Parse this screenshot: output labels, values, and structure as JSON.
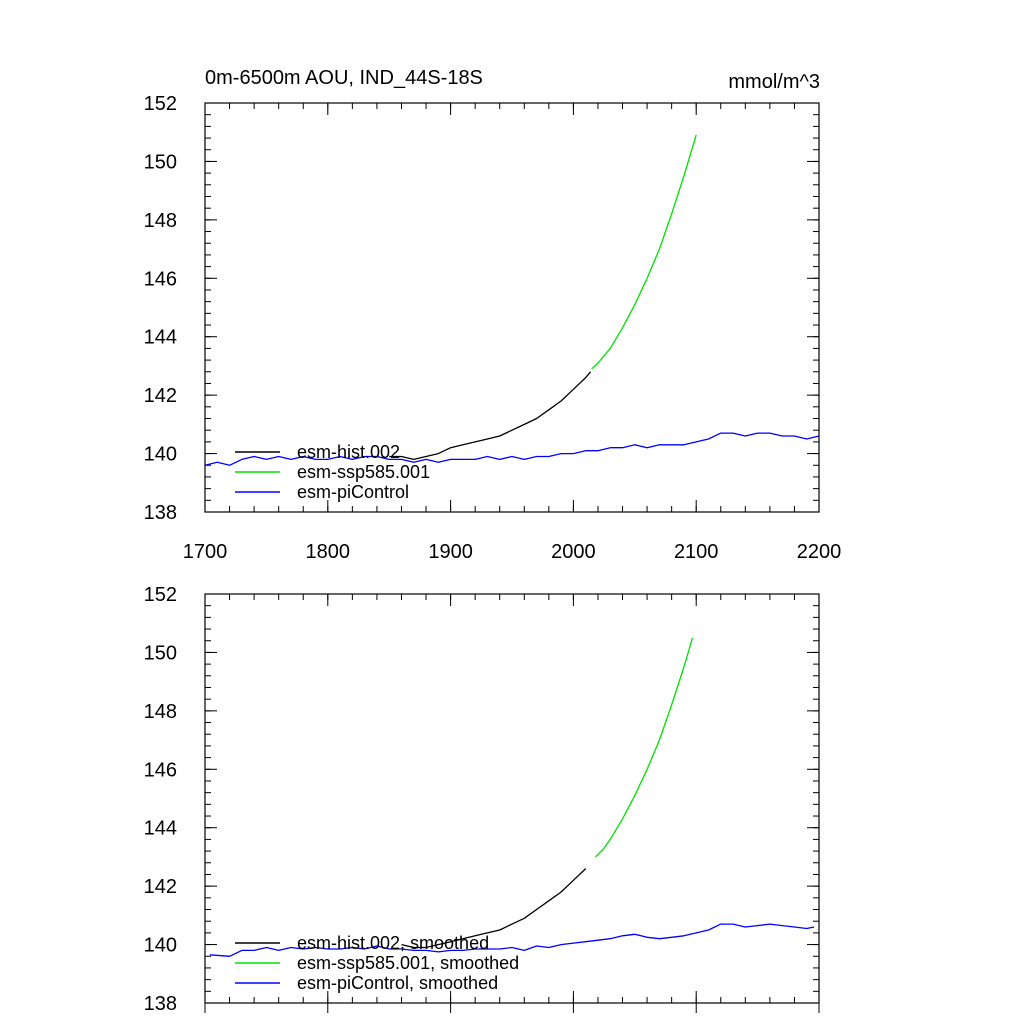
{
  "chart_data": [
    {
      "type": "line",
      "title": "0m-6500m AOU, IND_44S-18S",
      "units": "mmol/m^3",
      "xlim": [
        1700,
        2200
      ],
      "ylim": [
        138,
        152
      ],
      "x_ticks": [
        "1700",
        "1800",
        "1900",
        "2000",
        "2100",
        "2200"
      ],
      "y_ticks": [
        "138",
        "140",
        "142",
        "144",
        "146",
        "148",
        "150",
        "152"
      ],
      "show_x_tick_labels": true,
      "legend_position": "bottom-left",
      "series": [
        {
          "name": "esm-hist.002",
          "color": "#000000",
          "x": [
            1850,
            1860,
            1870,
            1880,
            1890,
            1900,
            1910,
            1920,
            1930,
            1940,
            1950,
            1960,
            1970,
            1980,
            1990,
            2000,
            2010,
            2014
          ],
          "y": [
            139.9,
            139.9,
            139.8,
            139.9,
            140.0,
            140.2,
            140.3,
            140.4,
            140.5,
            140.6,
            140.8,
            141.0,
            141.2,
            141.5,
            141.8,
            142.2,
            142.6,
            142.8
          ]
        },
        {
          "name": "esm-ssp585.001",
          "color": "#00e000",
          "x": [
            2015,
            2020,
            2030,
            2040,
            2050,
            2060,
            2070,
            2080,
            2090,
            2100
          ],
          "y": [
            142.9,
            143.1,
            143.6,
            144.3,
            145.1,
            146.0,
            147.0,
            148.2,
            149.5,
            150.9
          ]
        },
        {
          "name": "esm-piControl",
          "color": "#0000ff",
          "x": [
            1700,
            1710,
            1720,
            1730,
            1740,
            1750,
            1760,
            1770,
            1780,
            1790,
            1800,
            1810,
            1820,
            1830,
            1840,
            1850,
            1860,
            1870,
            1880,
            1890,
            1900,
            1910,
            1920,
            1930,
            1940,
            1950,
            1960,
            1970,
            1980,
            1990,
            2000,
            2010,
            2020,
            2030,
            2040,
            2050,
            2060,
            2070,
            2080,
            2090,
            2100,
            2110,
            2120,
            2130,
            2140,
            2150,
            2160,
            2170,
            2180,
            2190,
            2200
          ],
          "y": [
            139.6,
            139.7,
            139.6,
            139.8,
            139.9,
            139.8,
            139.9,
            139.8,
            139.9,
            139.8,
            139.8,
            139.9,
            139.8,
            139.9,
            139.9,
            139.8,
            139.8,
            139.7,
            139.8,
            139.7,
            139.8,
            139.8,
            139.8,
            139.9,
            139.8,
            139.9,
            139.8,
            139.9,
            139.9,
            140.0,
            140.0,
            140.1,
            140.1,
            140.2,
            140.2,
            140.3,
            140.2,
            140.3,
            140.3,
            140.3,
            140.4,
            140.5,
            140.7,
            140.7,
            140.6,
            140.7,
            140.7,
            140.6,
            140.6,
            140.5,
            140.6
          ]
        }
      ]
    },
    {
      "type": "line",
      "title": "",
      "units": "",
      "xlim": [
        1700,
        2200
      ],
      "ylim": [
        138,
        152
      ],
      "x_ticks": [
        "1700",
        "1800",
        "1900",
        "2000",
        "2100",
        "2200"
      ],
      "y_ticks": [
        "138",
        "140",
        "142",
        "144",
        "146",
        "148",
        "150",
        "152"
      ],
      "show_x_tick_labels": false,
      "legend_position": "bottom-left",
      "series": [
        {
          "name": "esm-hist.002, smoothed",
          "color": "#000000",
          "x": [
            1860,
            1870,
            1880,
            1890,
            1900,
            1910,
            1920,
            1930,
            1940,
            1950,
            1960,
            1970,
            1980,
            1990,
            2000,
            2010
          ],
          "y": [
            140.0,
            139.9,
            139.9,
            140.0,
            140.1,
            140.2,
            140.3,
            140.4,
            140.5,
            140.7,
            140.9,
            141.2,
            141.5,
            141.8,
            142.2,
            142.6
          ]
        },
        {
          "name": "esm-ssp585.001, smoothed",
          "color": "#00e000",
          "x": [
            2018,
            2025,
            2030,
            2040,
            2050,
            2060,
            2070,
            2080,
            2090,
            2097
          ],
          "y": [
            143.0,
            143.3,
            143.6,
            144.3,
            145.1,
            146.0,
            147.0,
            148.2,
            149.5,
            150.5
          ]
        },
        {
          "name": "esm-piControl, smoothed",
          "color": "#0000ff",
          "x": [
            1704,
            1720,
            1730,
            1740,
            1750,
            1760,
            1770,
            1780,
            1790,
            1800,
            1810,
            1820,
            1830,
            1840,
            1850,
            1860,
            1870,
            1880,
            1890,
            1900,
            1910,
            1920,
            1930,
            1940,
            1950,
            1960,
            1970,
            1980,
            1990,
            2000,
            2010,
            2020,
            2030,
            2040,
            2050,
            2060,
            2070,
            2080,
            2090,
            2100,
            2110,
            2120,
            2130,
            2140,
            2150,
            2160,
            2170,
            2180,
            2190,
            2196
          ],
          "y": [
            139.65,
            139.6,
            139.8,
            139.8,
            139.9,
            139.8,
            139.9,
            139.85,
            139.9,
            139.85,
            139.85,
            139.9,
            139.85,
            139.95,
            139.85,
            139.85,
            139.8,
            139.8,
            139.75,
            139.8,
            139.8,
            139.85,
            139.85,
            139.85,
            139.9,
            139.8,
            139.95,
            139.9,
            140.0,
            140.05,
            140.1,
            140.15,
            140.2,
            140.3,
            140.35,
            140.25,
            140.2,
            140.25,
            140.3,
            140.4,
            140.5,
            140.7,
            140.7,
            140.6,
            140.65,
            140.7,
            140.65,
            140.6,
            140.55,
            140.6
          ]
        }
      ]
    }
  ]
}
